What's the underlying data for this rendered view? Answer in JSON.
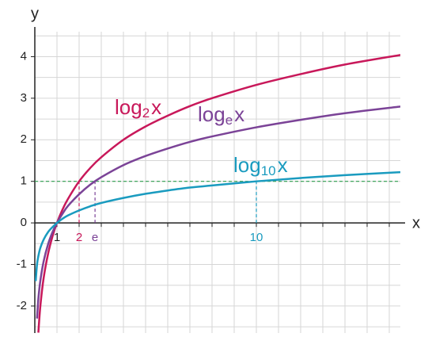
{
  "chart_data": {
    "type": "line",
    "xlabel": "x",
    "ylabel": "y",
    "x": [
      0.04,
      0.1,
      0.16,
      0.25,
      0.4,
      0.6,
      0.8,
      1,
      1.25,
      1.5,
      2,
      2.5,
      3,
      4,
      5,
      6,
      7,
      8,
      10,
      12,
      14,
      16.5
    ],
    "series": [
      {
        "name": {
          "base": "log",
          "sub": "2",
          "arg": "x"
        },
        "color": "#c8185a",
        "values": [
          null,
          null,
          -2.64,
          -2,
          -1.32,
          -0.74,
          -0.32,
          0,
          0.32,
          0.58,
          1,
          1.32,
          1.58,
          2,
          2.32,
          2.58,
          2.81,
          3,
          3.32,
          3.58,
          3.81,
          4.04
        ]
      },
      {
        "name": {
          "base": "log",
          "sub": "e",
          "arg": "x"
        },
        "color": "#7b4397",
        "values": [
          null,
          -2.3,
          -1.83,
          -1.39,
          -0.92,
          -0.51,
          -0.22,
          0,
          0.22,
          0.41,
          0.69,
          0.92,
          1.1,
          1.39,
          1.61,
          1.79,
          1.95,
          2.08,
          2.3,
          2.48,
          2.64,
          2.8
        ]
      },
      {
        "name": {
          "base": "log",
          "sub": "10",
          "arg": "x"
        },
        "color": "#1a9bbf",
        "values": [
          -1.4,
          -1,
          -0.8,
          -0.6,
          -0.4,
          -0.22,
          -0.1,
          0,
          0.1,
          0.18,
          0.3,
          0.4,
          0.48,
          0.6,
          0.7,
          0.78,
          0.85,
          0.9,
          1,
          1.08,
          1.15,
          1.22
        ]
      }
    ],
    "xlim": [
      0,
      16.5
    ],
    "ylim": [
      -2.65,
      4.6
    ],
    "xticks": [
      {
        "value": 1,
        "label": "1",
        "color": "#222222",
        "dashed": false
      },
      {
        "value": 2,
        "label": "2",
        "color": "#c8185a",
        "dashed": true
      },
      {
        "value": 2.718,
        "label": "e",
        "color": "#7b4397",
        "dashed": true
      },
      {
        "value": 10,
        "label": "10",
        "color": "#1a9bbf",
        "dashed": true
      }
    ],
    "yticks": [
      -2,
      -1,
      0,
      1,
      2,
      3,
      4
    ],
    "xgrid": [
      0,
      1,
      2,
      3,
      4,
      5,
      6,
      7,
      8,
      9,
      10,
      11,
      12,
      13,
      14,
      15,
      16
    ],
    "ygrid": [
      -2.5,
      -2,
      -1.5,
      -1,
      -0.5,
      0,
      0.5,
      1,
      1.5,
      2,
      2.5,
      3,
      3.5,
      4,
      4.5
    ],
    "hline": {
      "y": 1,
      "color": "#2e9e4f"
    },
    "grid": true
  }
}
